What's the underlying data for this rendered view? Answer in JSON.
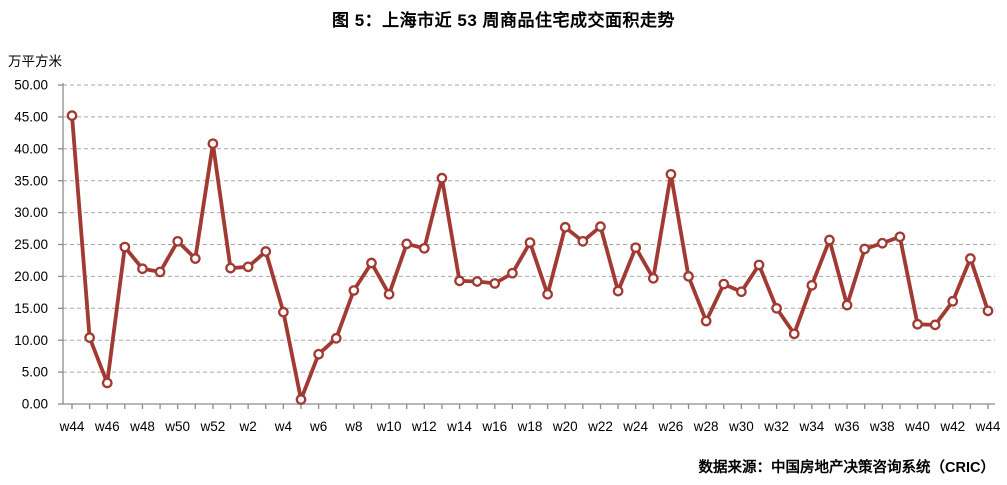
{
  "title": "图 5：上海市近 53 周商品住宅成交面积走势",
  "unit_label": "万平方米",
  "source": "数据来源：中国房地产决策咨询系统（CRIC）",
  "colors": {
    "line": "#A03A32",
    "marker_fill": "#FFFFFF",
    "grid": "#A8A8A8",
    "axis": "#8C8C8C",
    "text": "#000000"
  },
  "chart_data": {
    "type": "line",
    "title": "图 5：上海市近 53 周商品住宅成交面积走势",
    "xlabel": "",
    "ylabel": "万平方米",
    "ylim": [
      0,
      50
    ],
    "y_tick_step": 5,
    "grid": "horizontal-dashed",
    "legend": "none",
    "y_tick_labels": [
      "50.00",
      "45.00",
      "40.00",
      "35.00",
      "30.00",
      "25.00",
      "20.00",
      "15.00",
      "10.00",
      "5.00",
      "0.00"
    ],
    "categories": [
      "w44",
      "w45",
      "w46",
      "w47",
      "w48",
      "w49",
      "w50",
      "w51",
      "w52",
      "w1",
      "w2",
      "w3",
      "w4",
      "w5",
      "w6",
      "w7",
      "w8",
      "w9",
      "w10",
      "w11",
      "w12",
      "w13",
      "w14",
      "w15",
      "w16",
      "w17",
      "w18",
      "w19",
      "w20",
      "w21",
      "w22",
      "w23",
      "w24",
      "w25",
      "w26",
      "w27",
      "w28",
      "w29",
      "w30",
      "w31",
      "w32",
      "w33",
      "w34",
      "w35",
      "w36",
      "w37",
      "w38",
      "w39",
      "w40",
      "w41",
      "w42",
      "w43",
      "w44"
    ],
    "values": [
      45.2,
      10.4,
      3.3,
      24.6,
      21.2,
      20.7,
      25.5,
      22.8,
      40.8,
      21.3,
      21.5,
      23.9,
      14.4,
      0.7,
      7.8,
      10.3,
      17.8,
      22.1,
      17.2,
      25.1,
      24.4,
      35.4,
      19.3,
      19.2,
      18.9,
      20.5,
      25.3,
      17.2,
      27.7,
      25.5,
      27.8,
      17.7,
      24.5,
      19.7,
      36.0,
      20.0,
      13.0,
      18.8,
      17.6,
      21.8,
      15.0,
      11.0,
      18.6,
      25.7,
      15.5,
      24.3,
      25.2,
      26.2,
      12.5,
      12.4,
      16.1,
      22.8,
      14.6
    ],
    "x_tick_labels": [
      "w44",
      "w46",
      "w48",
      "w50",
      "w52",
      "w2",
      "w4",
      "w6",
      "w8",
      "w10",
      "w12",
      "w14",
      "w16",
      "w18",
      "w20",
      "w22",
      "w24",
      "w26",
      "w28",
      "w30",
      "w32",
      "w34",
      "w36",
      "w38",
      "w40",
      "w42",
      "w44"
    ],
    "x_tick_every": 2
  }
}
